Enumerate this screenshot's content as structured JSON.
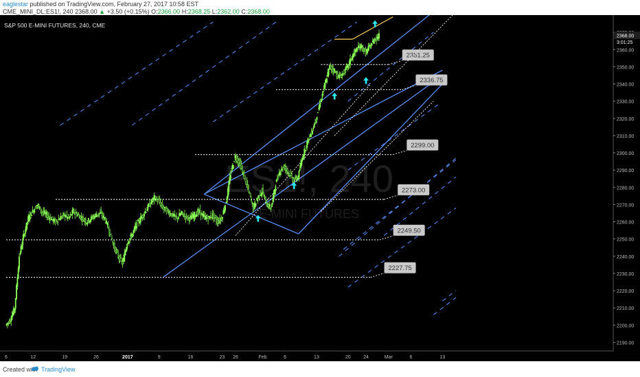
{
  "header": {
    "author": "eaglestar",
    "published_text": "published on TradingView.com, February 27, 2017 10:58 EST",
    "symbol_full": "CME_MINI_DL:ES1!, 240",
    "change_text": "+3.50 (+0.15%)",
    "last_price": "2368.00",
    "ohlc": [
      "O:",
      "2366.00",
      "H:",
      "2368.25",
      "L:",
      "2362.00",
      "C:",
      "2368.00"
    ]
  },
  "footer": {
    "created_with": "Created with",
    "brand": "TradingView"
  },
  "chart_data": {
    "type": "candlestick",
    "title": "S&P 500 E-MINI FUTURES, 240, CME",
    "watermark_symbol": "ES1!, 240",
    "watermark_name": "E-MINI FUTURES",
    "ylim": [
      2185,
      2380
    ],
    "y_ticks": [
      2190,
      2200,
      2210,
      2220,
      2230,
      2240,
      2250,
      2260,
      2270,
      2280,
      2290,
      2300,
      2310,
      2320,
      2330,
      2340,
      2350,
      2360,
      2370
    ],
    "y_tick_labels": [
      "2190.00",
      "2200.00",
      "2210.00",
      "2220.00",
      "2230.00",
      "2240.00",
      "2250.00",
      "2260.00",
      "2270.00",
      "2280.00",
      "2290.00",
      "2300.00",
      "2310.00",
      "2320.00",
      "2330.00",
      "2340.00",
      "2350.00",
      "2360.00",
      "2370.00"
    ],
    "x_ticks": [
      {
        "label": "6",
        "day": 0
      },
      {
        "label": "12",
        "day": 6
      },
      {
        "label": "19",
        "day": 13
      },
      {
        "label": "26",
        "day": 20
      },
      {
        "label": "2017",
        "day": 27
      },
      {
        "label": "9",
        "day": 34
      },
      {
        "label": "16",
        "day": 41
      },
      {
        "label": "23",
        "day": 48
      },
      {
        "label": "26",
        "day": 51
      },
      {
        "label": "Feb",
        "day": 57
      },
      {
        "label": "6",
        "day": 62
      },
      {
        "label": "13",
        "day": 69
      },
      {
        "label": "20",
        "day": 76
      },
      {
        "label": "24",
        "day": 80
      },
      {
        "label": "Mar",
        "day": 85
      },
      {
        "label": "6",
        "day": 90
      },
      {
        "label": "13",
        "day": 97
      }
    ],
    "price_path": [
      [
        0,
        2200
      ],
      [
        1,
        2203
      ],
      [
        2,
        2210
      ],
      [
        3,
        2240
      ],
      [
        4,
        2252
      ],
      [
        5,
        2262
      ],
      [
        6,
        2266
      ],
      [
        7,
        2270
      ],
      [
        8,
        2266
      ],
      [
        9,
        2264
      ],
      [
        10,
        2262
      ],
      [
        11,
        2260
      ],
      [
        12,
        2262
      ],
      [
        13,
        2264
      ],
      [
        14,
        2262
      ],
      [
        15,
        2266
      ],
      [
        16,
        2264
      ],
      [
        17,
        2262
      ],
      [
        18,
        2260
      ],
      [
        19,
        2262
      ],
      [
        20,
        2264
      ],
      [
        21,
        2265
      ],
      [
        22,
        2262
      ],
      [
        23,
        2255
      ],
      [
        24,
        2246
      ],
      [
        25,
        2240
      ],
      [
        26,
        2236
      ],
      [
        27,
        2248
      ],
      [
        28,
        2252
      ],
      [
        29,
        2258
      ],
      [
        30,
        2262
      ],
      [
        31,
        2266
      ],
      [
        32,
        2270
      ],
      [
        33,
        2274
      ],
      [
        34,
        2272
      ],
      [
        35,
        2268
      ],
      [
        36,
        2266
      ],
      [
        37,
        2264
      ],
      [
        38,
        2262
      ],
      [
        39,
        2265
      ],
      [
        40,
        2263
      ],
      [
        41,
        2262
      ],
      [
        42,
        2264
      ],
      [
        43,
        2266
      ],
      [
        44,
        2263
      ],
      [
        45,
        2262
      ],
      [
        46,
        2264
      ],
      [
        47,
        2260
      ],
      [
        48,
        2262
      ],
      [
        49,
        2272
      ],
      [
        50,
        2288
      ],
      [
        51,
        2298
      ],
      [
        52,
        2294
      ],
      [
        53,
        2286
      ],
      [
        54,
        2278
      ],
      [
        55,
        2268
      ],
      [
        56,
        2274
      ],
      [
        57,
        2278
      ],
      [
        58,
        2270
      ],
      [
        59,
        2268
      ],
      [
        60,
        2282
      ],
      [
        61,
        2290
      ],
      [
        62,
        2292
      ],
      [
        63,
        2288
      ],
      [
        64,
        2284
      ],
      [
        65,
        2286
      ],
      [
        66,
        2298
      ],
      [
        67,
        2306
      ],
      [
        68,
        2312
      ],
      [
        69,
        2320
      ],
      [
        70,
        2330
      ],
      [
        71,
        2340
      ],
      [
        72,
        2350
      ],
      [
        73,
        2348
      ],
      [
        74,
        2344
      ],
      [
        75,
        2346
      ],
      [
        76,
        2350
      ],
      [
        77,
        2356
      ],
      [
        78,
        2360
      ],
      [
        79,
        2362
      ],
      [
        80,
        2358
      ],
      [
        81,
        2362
      ],
      [
        82,
        2366
      ],
      [
        83,
        2368
      ]
    ],
    "horizontal_levels": [
      {
        "value": 2351.25,
        "label": "2351.25"
      },
      {
        "value": 2336.75,
        "label": "2336.75"
      },
      {
        "value": 2299.0,
        "label": "2299.00"
      },
      {
        "value": 2273.0,
        "label": "2273.00"
      },
      {
        "value": 2249.5,
        "label": "2249.50"
      },
      {
        "value": 2227.75,
        "label": "2227.75"
      }
    ],
    "price_labels": [
      "2368.00",
      "3:01:25"
    ],
    "up_arrows": [
      {
        "day": 56,
        "value": 2262
      },
      {
        "day": 64,
        "value": 2281
      },
      {
        "day": 73,
        "value": 2333
      },
      {
        "day": 80,
        "value": 2342
      },
      {
        "day": 82,
        "value": 2375
      }
    ],
    "colors": {
      "candle": "#8cff58",
      "channel": "#5b8ff5",
      "dashed": "#4f7ddb",
      "dotted": "#e8e8e8",
      "trendline": "#e8c35a",
      "arrow": "#2ee6f0",
      "label_bg": "#c9c9c9"
    }
  }
}
